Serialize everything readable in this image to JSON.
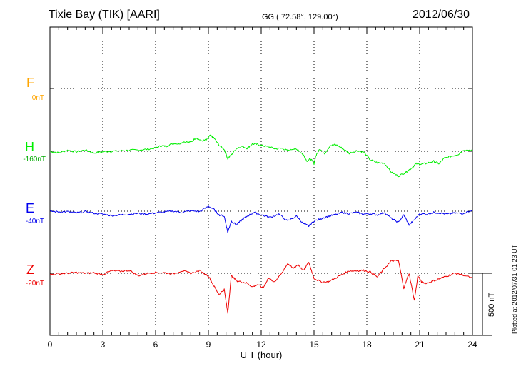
{
  "header": {
    "station": "Tixie Bay (TIK)  [AARI]",
    "coords": "GG ( 72.58°, 129.00°)",
    "date": "2012/06/30"
  },
  "footer": {
    "plotted": "Plotted at 2012/07/31 01:23 UT"
  },
  "chart_data": {
    "type": "line",
    "xlabel": "U T (hour)",
    "xlim": [
      0,
      24
    ],
    "xticks": [
      "0",
      "3",
      "6",
      "9",
      "12",
      "15",
      "18",
      "21",
      "24"
    ],
    "scale_bar_label": "500 nT",
    "scale_bar_nT": 500,
    "grid": true,
    "series": [
      {
        "name": "F",
        "offset_label": "0nT",
        "color": "#ffa500",
        "values": []
      },
      {
        "name": "H",
        "offset_label": "-160nT",
        "color": "#00ee00",
        "x": [
          0,
          0.5,
          1,
          1.5,
          2,
          2.5,
          3,
          3.5,
          4,
          4.5,
          5,
          5.5,
          6,
          6.3,
          6.6,
          7,
          7.3,
          7.6,
          8,
          8.3,
          8.6,
          8.9,
          9.1,
          9.3,
          9.6,
          9.9,
          10.1,
          10.3,
          10.6,
          10.9,
          11.2,
          11.5,
          11.8,
          12.1,
          12.4,
          12.8,
          13.2,
          13.5,
          13.8,
          14.1,
          14.4,
          14.6,
          14.8,
          15.0,
          15.1,
          15.3,
          15.6,
          15.9,
          16.2,
          16.6,
          17,
          17.4,
          17.8,
          18.2,
          18.6,
          19,
          19.4,
          19.8,
          20.2,
          20.5,
          20.8,
          21.1,
          21.4,
          21.8,
          22.1,
          22.4,
          22.8,
          23.2,
          23.5,
          24
        ],
        "values": [
          0,
          -12,
          8,
          -4,
          10,
          -14,
          -4,
          0,
          4,
          8,
          10,
          16,
          26,
          44,
          40,
          64,
          60,
          76,
          72,
          110,
          84,
          92,
          128,
          110,
          50,
          16,
          -60,
          -28,
          24,
          40,
          24,
          60,
          54,
          44,
          36,
          20,
          24,
          4,
          20,
          12,
          -30,
          -80,
          -60,
          -100,
          -40,
          20,
          -16,
          40,
          56,
          24,
          -16,
          4,
          -4,
          -70,
          -92,
          -96,
          -170,
          -200,
          -170,
          -140,
          -100,
          -104,
          -96,
          -80,
          -100,
          -56,
          -40,
          -24,
          12,
          8
        ]
      },
      {
        "name": "E",
        "offset_label": "-40nT",
        "color": "#0000ee",
        "x": [
          0,
          0.5,
          1,
          1.5,
          2,
          2.5,
          3,
          3.5,
          4,
          4.5,
          5,
          5.5,
          6,
          6.5,
          7,
          7.5,
          8,
          8.5,
          9,
          9.3,
          9.6,
          9.9,
          10.1,
          10.3,
          10.6,
          10.9,
          11.2,
          11.6,
          12,
          12.5,
          13,
          13.5,
          14,
          14.4,
          14.7,
          15,
          15.4,
          15.8,
          16.2,
          16.6,
          17,
          17.4,
          17.8,
          18.2,
          18.6,
          19,
          19.4,
          19.8,
          20.1,
          20.4,
          20.7,
          21,
          21.4,
          21.8,
          22.2,
          22.6,
          23,
          23.4,
          24
        ],
        "values": [
          0,
          -6,
          -4,
          -14,
          -4,
          -16,
          -24,
          -36,
          -30,
          -24,
          -18,
          -24,
          -14,
          -6,
          0,
          -10,
          4,
          -4,
          40,
          16,
          -30,
          -40,
          -170,
          -80,
          -110,
          -70,
          -40,
          -10,
          -30,
          -50,
          -24,
          -80,
          -40,
          -100,
          -120,
          -80,
          -60,
          -40,
          -30,
          -10,
          -20,
          -10,
          -24,
          -20,
          -30,
          -10,
          -60,
          -90,
          -30,
          -110,
          -70,
          -20,
          -24,
          -10,
          -16,
          -24,
          -14,
          -20,
          10
        ]
      },
      {
        "name": "Z",
        "offset_label": "-20nT",
        "color": "#ee0000",
        "x": [
          0,
          0.5,
          1,
          1.5,
          2,
          2.5,
          3,
          3.5,
          4,
          4.5,
          5,
          5.5,
          6,
          6.5,
          7,
          7.5,
          8,
          8.5,
          9,
          9.3,
          9.6,
          9.9,
          10.1,
          10.3,
          10.6,
          10.9,
          11.2,
          11.5,
          11.8,
          12.1,
          12.4,
          12.8,
          13.2,
          13.5,
          13.8,
          14.1,
          14.4,
          14.7,
          15,
          15.4,
          15.8,
          16.2,
          16.6,
          17,
          17.4,
          17.8,
          18.2,
          18.6,
          19,
          19.4,
          19.8,
          20.1,
          20.4,
          20.7,
          20.9,
          21.1,
          21.4,
          21.8,
          22.2,
          22.6,
          23,
          23.4,
          24
        ],
        "values": [
          -10,
          -4,
          0,
          6,
          0,
          4,
          -10,
          20,
          16,
          24,
          -20,
          0,
          6,
          4,
          -4,
          20,
          0,
          20,
          -20,
          -100,
          -170,
          -130,
          -320,
          -20,
          -60,
          -70,
          -80,
          -110,
          -90,
          -120,
          -40,
          -70,
          10,
          80,
          40,
          70,
          20,
          90,
          -40,
          -70,
          -70,
          -40,
          -10,
          20,
          20,
          24,
          10,
          -30,
          40,
          100,
          100,
          -120,
          0,
          -220,
          -20,
          -70,
          -80,
          -60,
          -40,
          -20,
          0,
          -10,
          -40
        ]
      }
    ]
  }
}
